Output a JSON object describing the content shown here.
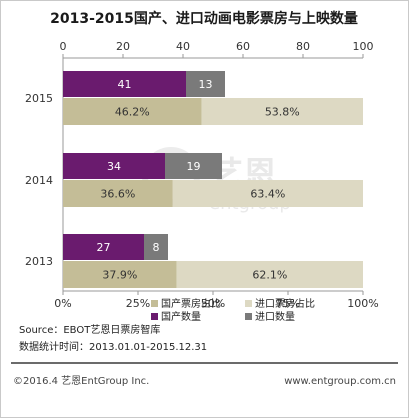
{
  "chart_data": {
    "type": "bar",
    "title": "2013-2015国产、进口动画电影票房与上映数量",
    "categories": [
      "2015",
      "2014",
      "2013"
    ],
    "series": [
      {
        "name": "国产数量",
        "values": [
          41,
          34,
          27
        ],
        "color": "#6a1b6e",
        "label_color": "#ffffff"
      },
      {
        "name": "进口数量",
        "values": [
          13,
          19,
          8
        ],
        "color": "#7a7a7a",
        "label_color": "#ffffff"
      },
      {
        "name": "国产票房占比",
        "values": [
          46.2,
          36.6,
          37.9
        ],
        "labels": [
          "46.2%",
          "36.6%",
          "37.9%"
        ],
        "color": "#c4bd97",
        "label_color": "#333333"
      },
      {
        "name": "进口票房占比",
        "values": [
          53.8,
          63.4,
          62.1
        ],
        "labels": [
          "53.8%",
          "63.4%",
          "62.1%"
        ],
        "color": "#ddd9c3",
        "label_color": "#333333"
      }
    ],
    "top_axis": {
      "range": [
        0,
        100
      ],
      "ticks": [
        "0",
        "20",
        "40",
        "60",
        "80",
        "100"
      ]
    },
    "bottom_axis": {
      "range": [
        0,
        100
      ],
      "ticks": [
        "0%",
        "25%",
        "50%",
        "75%",
        "100%"
      ]
    },
    "legend": [
      {
        "name": "国产票房占比",
        "color": "#c4bd97"
      },
      {
        "name": "进口票房占比",
        "color": "#ddd9c3"
      },
      {
        "name": "国产数量",
        "color": "#6a1b6e"
      },
      {
        "name": "进口数量",
        "color": "#7a7a7a"
      }
    ],
    "legend_placement": "bottom",
    "grid": false
  },
  "notes": {
    "source": "Source：EBOT艺恩日票房智库",
    "period": "数据统计时间：2013.01.01-2015.12.31"
  },
  "footer": {
    "left": "©2016.4 艺恩EntGroup Inc.",
    "right": "www.entgroup.com.cn"
  },
  "watermark": {
    "brand": "艺恩",
    "sub": "entgroup"
  }
}
